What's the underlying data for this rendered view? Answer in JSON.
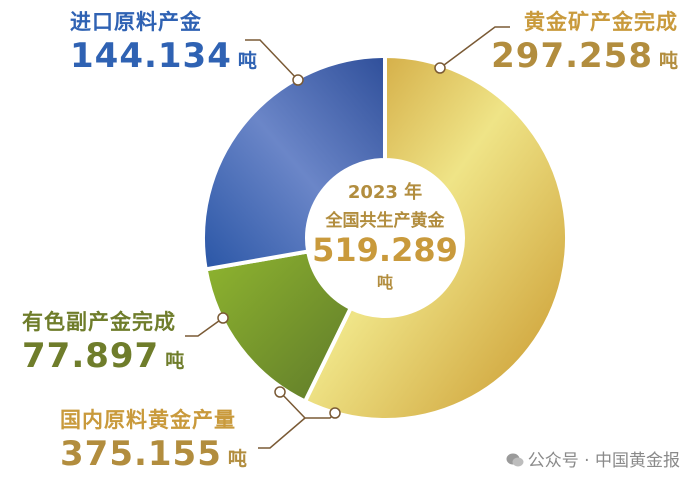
{
  "chart_data": {
    "type": "pie",
    "slices": [
      {
        "label": "黄金矿产金完成",
        "value": 297.258,
        "unit": "吨",
        "color": "#d4a73a"
      },
      {
        "label": "有色副产金完成",
        "value": 77.897,
        "unit": "吨",
        "color": "#7d9a2e"
      },
      {
        "label": "进口原料产金",
        "value": 144.134,
        "unit": "吨",
        "color": "#3f63b0"
      }
    ],
    "bracket": {
      "label": "国内原料黄金产量",
      "value": "375.155",
      "unit": "吨"
    },
    "center": {
      "line1": "2023 年",
      "line2": "全国共生产黄金",
      "value": "519.289",
      "unit": "吨"
    }
  },
  "watermark": {
    "text": "公众号 · 中国黄金报"
  }
}
